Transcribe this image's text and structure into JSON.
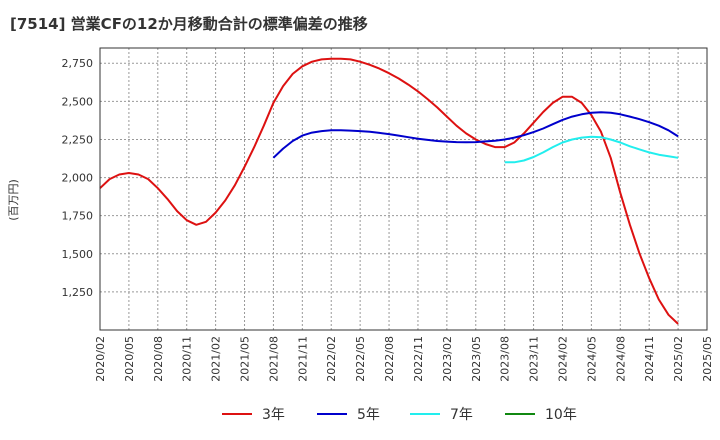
{
  "chart_data": {
    "type": "line",
    "title": "[7514]  営業CFの12か月移動合計の標準偏差の推移",
    "ylabel": "(百万円)",
    "xlabel": "",
    "ylim": [
      1000,
      2850
    ],
    "yticks": [
      1250,
      1500,
      1750,
      2000,
      2250,
      2500,
      2750
    ],
    "ytick_labels": [
      "1,250",
      "1,500",
      "1,750",
      "2,000",
      "2,250",
      "2,500",
      "2,750"
    ],
    "x_range": [
      "2020/02",
      "2025/05"
    ],
    "xtick_labels": [
      "2020/02",
      "2020/05",
      "2020/08",
      "2020/11",
      "2021/02",
      "2021/05",
      "2021/08",
      "2021/11",
      "2022/02",
      "2022/05",
      "2022/08",
      "2022/11",
      "2023/02",
      "2023/05",
      "2023/08",
      "2023/11",
      "2024/02",
      "2024/05",
      "2024/08",
      "2024/11",
      "2025/02",
      "2025/05"
    ],
    "grid": true,
    "legend_position": "bottom",
    "series": [
      {
        "name": "3年",
        "color": "#dd1111",
        "x": [
          "2020/02",
          "2020/03",
          "2020/04",
          "2020/05",
          "2020/06",
          "2020/07",
          "2020/08",
          "2020/09",
          "2020/10",
          "2020/11",
          "2020/12",
          "2021/01",
          "2021/02",
          "2021/03",
          "2021/04",
          "2021/05",
          "2021/06",
          "2021/07",
          "2021/08",
          "2021/09",
          "2021/10",
          "2021/11",
          "2021/12",
          "2022/01",
          "2022/02",
          "2022/03",
          "2022/04",
          "2022/05",
          "2022/06",
          "2022/07",
          "2022/08",
          "2022/09",
          "2022/10",
          "2022/11",
          "2022/12",
          "2023/01",
          "2023/02",
          "2023/03",
          "2023/04",
          "2023/05",
          "2023/06",
          "2023/07",
          "2023/08",
          "2023/09",
          "2023/10",
          "2023/11",
          "2023/12",
          "2024/01",
          "2024/02",
          "2024/03",
          "2024/04",
          "2024/05",
          "2024/06",
          "2024/07",
          "2024/08",
          "2024/09",
          "2024/10",
          "2024/11",
          "2024/12",
          "2025/01",
          "2025/02"
        ],
        "values": [
          1930,
          1990,
          2020,
          2030,
          2020,
          1990,
          1930,
          1860,
          1780,
          1720,
          1690,
          1710,
          1770,
          1850,
          1950,
          2070,
          2200,
          2340,
          2490,
          2600,
          2680,
          2730,
          2760,
          2775,
          2780,
          2780,
          2775,
          2760,
          2740,
          2715,
          2685,
          2650,
          2610,
          2565,
          2515,
          2460,
          2400,
          2340,
          2290,
          2250,
          2220,
          2200,
          2200,
          2230,
          2290,
          2360,
          2430,
          2490,
          2530,
          2530,
          2490,
          2410,
          2300,
          2130,
          1900,
          1690,
          1500,
          1340,
          1200,
          1100,
          1040
        ]
      },
      {
        "name": "5年",
        "color": "#0000cc",
        "x": [
          "2021/08",
          "2021/09",
          "2021/10",
          "2021/11",
          "2021/12",
          "2022/01",
          "2022/02",
          "2022/03",
          "2022/04",
          "2022/05",
          "2022/06",
          "2022/07",
          "2022/08",
          "2022/09",
          "2022/10",
          "2022/11",
          "2022/12",
          "2023/01",
          "2023/02",
          "2023/03",
          "2023/04",
          "2023/05",
          "2023/06",
          "2023/07",
          "2023/08",
          "2023/09",
          "2023/10",
          "2023/11",
          "2023/12",
          "2024/01",
          "2024/02",
          "2024/03",
          "2024/04",
          "2024/05",
          "2024/06",
          "2024/07",
          "2024/08",
          "2024/09",
          "2024/10",
          "2024/11",
          "2024/12",
          "2025/01",
          "2025/02"
        ],
        "values": [
          2130,
          2190,
          2240,
          2275,
          2295,
          2305,
          2310,
          2310,
          2308,
          2305,
          2300,
          2293,
          2285,
          2275,
          2265,
          2255,
          2247,
          2240,
          2236,
          2233,
          2232,
          2233,
          2237,
          2242,
          2250,
          2262,
          2278,
          2298,
          2322,
          2350,
          2378,
          2400,
          2415,
          2425,
          2428,
          2425,
          2415,
          2400,
          2383,
          2363,
          2340,
          2310,
          2270
        ]
      },
      {
        "name": "7年",
        "color": "#22eeee",
        "x": [
          "2023/08",
          "2023/09",
          "2023/10",
          "2023/11",
          "2023/12",
          "2024/01",
          "2024/02",
          "2024/03",
          "2024/04",
          "2024/05",
          "2024/06",
          "2024/07",
          "2024/08",
          "2024/09",
          "2024/10",
          "2024/11",
          "2024/12",
          "2025/01",
          "2025/02"
        ],
        "values": [
          2100,
          2100,
          2112,
          2135,
          2165,
          2200,
          2230,
          2250,
          2262,
          2268,
          2265,
          2250,
          2230,
          2205,
          2185,
          2165,
          2150,
          2140,
          2130
        ]
      },
      {
        "name": "10年",
        "color": "#118811",
        "x": [],
        "values": []
      }
    ]
  }
}
